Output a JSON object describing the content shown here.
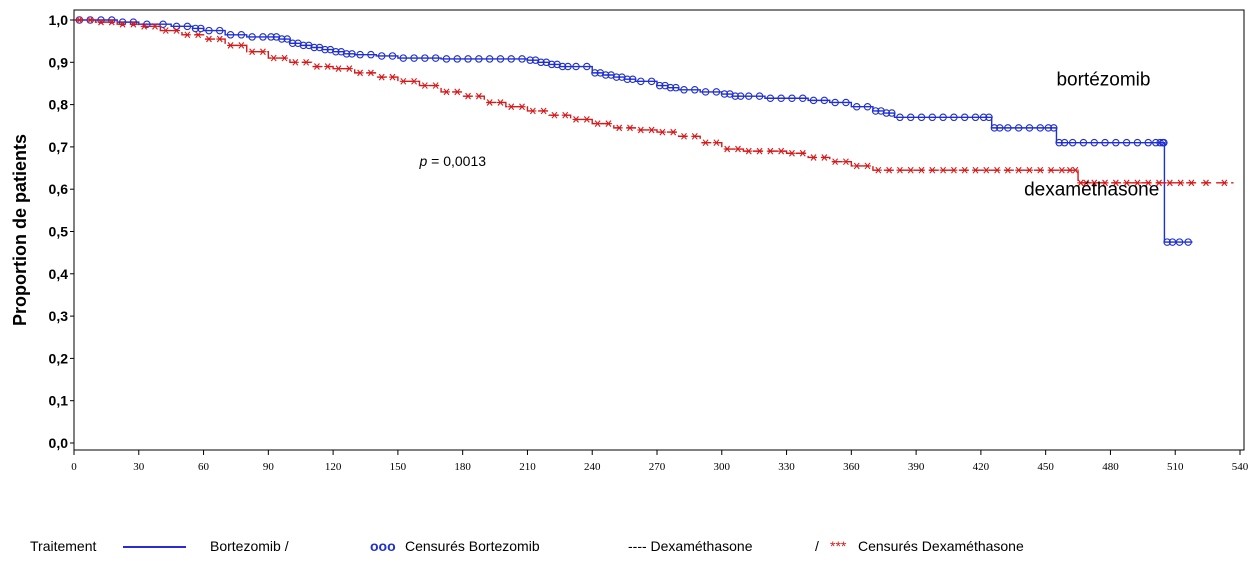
{
  "chart_data": {
    "type": "line",
    "ylabel": "Proportion de patients",
    "xlabel": "",
    "xlim": [
      0,
      540
    ],
    "ylim": [
      0,
      1
    ],
    "xticks": [
      "0",
      "30",
      "60",
      "90",
      "120",
      "150",
      "180",
      "210",
      "240",
      "270",
      "300",
      "330",
      "360",
      "390",
      "420",
      "450",
      "480",
      "510",
      "540"
    ],
    "yticks": [
      "0,0",
      "0,1",
      "0,2",
      "0,3",
      "0,4",
      "0,5",
      "0,6",
      "0,7",
      "0,8",
      "0,9",
      "1,0"
    ],
    "series": [
      {
        "name": "Bortezomib",
        "color": "#1f2fd0",
        "style": "solid",
        "censor_marker": "circle",
        "x": [
          0,
          10,
          20,
          30,
          45,
          55,
          60,
          70,
          80,
          90,
          95,
          100,
          105,
          110,
          115,
          120,
          125,
          130,
          140,
          150,
          160,
          170,
          180,
          190,
          200,
          210,
          215,
          220,
          225,
          230,
          240,
          245,
          250,
          255,
          260,
          270,
          275,
          280,
          290,
          300,
          305,
          310,
          320,
          330,
          340,
          350,
          360,
          370,
          375,
          380,
          390,
          400,
          410,
          420,
          425,
          430,
          440,
          450,
          455,
          460,
          470,
          480,
          490,
          500,
          504,
          505,
          510,
          518
        ],
        "y": [
          1.0,
          1.0,
          0.995,
          0.99,
          0.985,
          0.98,
          0.975,
          0.965,
          0.96,
          0.96,
          0.955,
          0.945,
          0.94,
          0.935,
          0.93,
          0.925,
          0.92,
          0.918,
          0.915,
          0.91,
          0.91,
          0.908,
          0.908,
          0.908,
          0.908,
          0.905,
          0.9,
          0.895,
          0.89,
          0.89,
          0.875,
          0.87,
          0.865,
          0.86,
          0.855,
          0.845,
          0.84,
          0.835,
          0.83,
          0.825,
          0.82,
          0.82,
          0.815,
          0.815,
          0.81,
          0.805,
          0.795,
          0.785,
          0.78,
          0.77,
          0.77,
          0.77,
          0.77,
          0.77,
          0.745,
          0.745,
          0.745,
          0.745,
          0.71,
          0.71,
          0.71,
          0.71,
          0.71,
          0.71,
          0.71,
          0.475,
          0.475,
          0.475
        ]
      },
      {
        "name": "Dexaméthasone",
        "color": "#d81818",
        "style": "dashed",
        "censor_marker": "star",
        "x": [
          0,
          10,
          20,
          30,
          40,
          50,
          60,
          70,
          80,
          90,
          100,
          110,
          120,
          130,
          140,
          150,
          160,
          170,
          180,
          190,
          200,
          210,
          220,
          230,
          240,
          250,
          260,
          270,
          280,
          290,
          300,
          310,
          320,
          330,
          340,
          350,
          360,
          370,
          380,
          390,
          400,
          410,
          420,
          430,
          440,
          450,
          460,
          465,
          470,
          480,
          490,
          500,
          510,
          520,
          537
        ],
        "y": [
          1.0,
          0.995,
          0.99,
          0.985,
          0.975,
          0.965,
          0.955,
          0.94,
          0.925,
          0.91,
          0.9,
          0.89,
          0.885,
          0.875,
          0.865,
          0.855,
          0.845,
          0.83,
          0.82,
          0.805,
          0.795,
          0.785,
          0.775,
          0.765,
          0.755,
          0.745,
          0.74,
          0.735,
          0.725,
          0.71,
          0.695,
          0.69,
          0.69,
          0.685,
          0.675,
          0.665,
          0.655,
          0.645,
          0.645,
          0.645,
          0.645,
          0.645,
          0.645,
          0.645,
          0.645,
          0.645,
          0.645,
          0.615,
          0.615,
          0.615,
          0.615,
          0.615,
          0.615,
          0.615,
          0.615
        ]
      }
    ],
    "annotations": [
      {
        "text": "bortézomib",
        "x": 455,
        "y": 0.845
      },
      {
        "text": "dexaméthasone",
        "x": 440,
        "y": 0.585
      }
    ],
    "pvalue": {
      "p_label": "p",
      "rest": " = 0,0013",
      "x": 160,
      "y": 0.655
    },
    "grid": false
  },
  "legend": {
    "title": "Traitement",
    "bortezomib": "Bortezomib  /",
    "censor_b_marker": "ooo",
    "censor_b_label": "Censurés Bortezomib",
    "dexa": "---- Dexaméthasone",
    "slash": "/",
    "censor_d_marker": "***",
    "censor_d_label": "Censurés Dexaméthasone"
  }
}
